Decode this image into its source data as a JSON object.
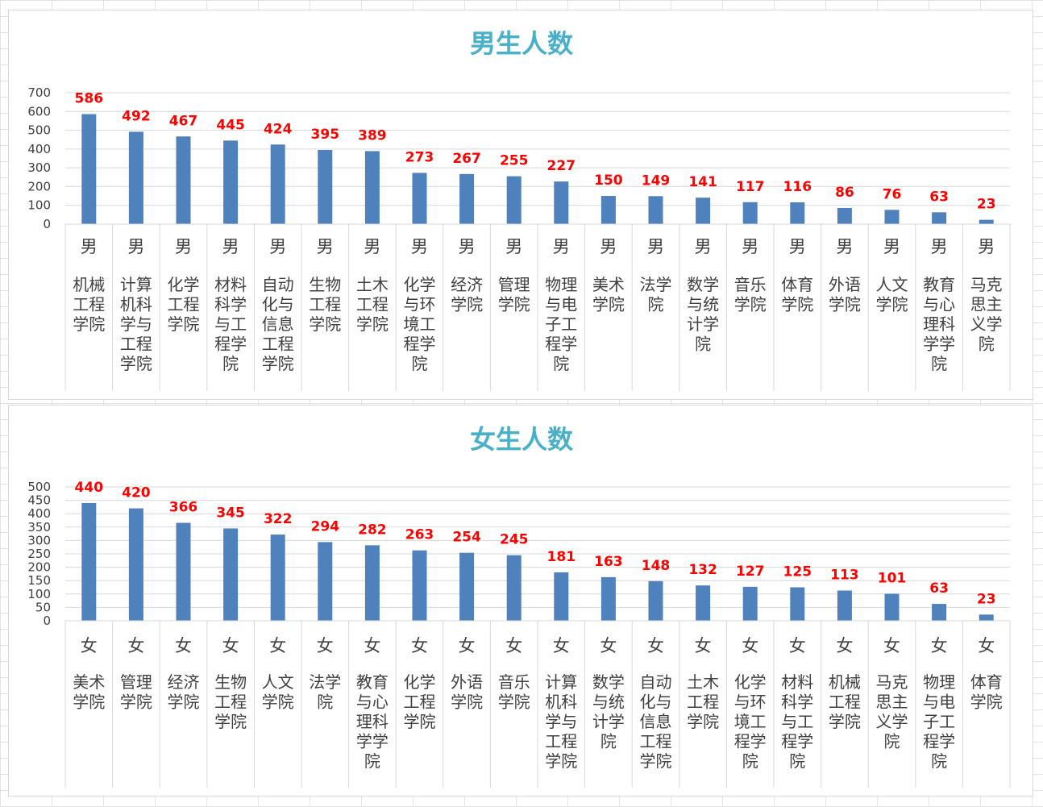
{
  "chart_data": [
    {
      "type": "bar",
      "title": "男生人数",
      "ylim": [
        0,
        700
      ],
      "yticks": [
        0,
        100,
        200,
        300,
        400,
        500,
        600,
        700
      ],
      "bar_color": "#4f81bd",
      "label_color": "#ff0000",
      "title_color": "#48b0c8",
      "grid": true,
      "categories": [
        {
          "gender": "男",
          "college": "机械工程学院",
          "lines": [
            "机械",
            "工程",
            "学院"
          ]
        },
        {
          "gender": "男",
          "college": "计算机科学与工程学院",
          "lines": [
            "计算",
            "机科",
            "学与",
            "工程",
            "学院"
          ]
        },
        {
          "gender": "男",
          "college": "化学工程学院",
          "lines": [
            "化学",
            "工程",
            "学院"
          ]
        },
        {
          "gender": "男",
          "college": "材料科学与工程学院",
          "lines": [
            "材料",
            "科学",
            "与工",
            "程学",
            "院"
          ]
        },
        {
          "gender": "男",
          "college": "自动化与信息工程学院",
          "lines": [
            "自动",
            "化与",
            "信息",
            "工程",
            "学院"
          ]
        },
        {
          "gender": "男",
          "college": "生物工程学院",
          "lines": [
            "生物",
            "工程",
            "学院"
          ]
        },
        {
          "gender": "男",
          "college": "土木工程学院",
          "lines": [
            "土木",
            "工程",
            "学院"
          ]
        },
        {
          "gender": "男",
          "college": "化学与环境工程学院",
          "lines": [
            "化学",
            "与环",
            "境工",
            "程学",
            "院"
          ]
        },
        {
          "gender": "男",
          "college": "经济学院",
          "lines": [
            "经济",
            "学院"
          ]
        },
        {
          "gender": "男",
          "college": "管理学院",
          "lines": [
            "管理",
            "学院"
          ]
        },
        {
          "gender": "男",
          "college": "物理与电子工程学院",
          "lines": [
            "物理",
            "与电",
            "子工",
            "程学",
            "院"
          ]
        },
        {
          "gender": "男",
          "college": "美术学院",
          "lines": [
            "美术",
            "学院"
          ]
        },
        {
          "gender": "男",
          "college": "法学院",
          "lines": [
            "法学",
            "院"
          ]
        },
        {
          "gender": "男",
          "college": "数学与统计学院",
          "lines": [
            "数学",
            "与统",
            "计学",
            "院"
          ]
        },
        {
          "gender": "男",
          "college": "音乐学院",
          "lines": [
            "音乐",
            "学院"
          ]
        },
        {
          "gender": "男",
          "college": "体育学院",
          "lines": [
            "体育",
            "学院"
          ]
        },
        {
          "gender": "男",
          "college": "外语学院",
          "lines": [
            "外语",
            "学院"
          ]
        },
        {
          "gender": "男",
          "college": "人文学院",
          "lines": [
            "人文",
            "学院"
          ]
        },
        {
          "gender": "男",
          "college": "教育与心理科学学院",
          "lines": [
            "教育",
            "与心",
            "理科",
            "学学",
            "院"
          ]
        },
        {
          "gender": "男",
          "college": "马克思主义学院",
          "lines": [
            "马克",
            "思主",
            "义学",
            "院"
          ]
        }
      ],
      "values": [
        586,
        492,
        467,
        445,
        424,
        395,
        389,
        273,
        267,
        255,
        227,
        150,
        149,
        141,
        117,
        116,
        86,
        76,
        63,
        23
      ]
    },
    {
      "type": "bar",
      "title": "女生人数",
      "ylim": [
        0,
        500
      ],
      "yticks": [
        0,
        50,
        100,
        150,
        200,
        250,
        300,
        350,
        400,
        450,
        500
      ],
      "bar_color": "#4f81bd",
      "label_color": "#ff0000",
      "title_color": "#48b0c8",
      "grid": true,
      "categories": [
        {
          "gender": "女",
          "college": "美术学院",
          "lines": [
            "美术",
            "学院"
          ]
        },
        {
          "gender": "女",
          "college": "管理学院",
          "lines": [
            "管理",
            "学院"
          ]
        },
        {
          "gender": "女",
          "college": "经济学院",
          "lines": [
            "经济",
            "学院"
          ]
        },
        {
          "gender": "女",
          "college": "生物工程学院",
          "lines": [
            "生物",
            "工程",
            "学院"
          ]
        },
        {
          "gender": "女",
          "college": "人文学院",
          "lines": [
            "人文",
            "学院"
          ]
        },
        {
          "gender": "女",
          "college": "法学院",
          "lines": [
            "法学",
            "院"
          ]
        },
        {
          "gender": "女",
          "college": "教育与心理科学学院",
          "lines": [
            "教育",
            "与心",
            "理科",
            "学学",
            "院"
          ]
        },
        {
          "gender": "女",
          "college": "化学工程学院",
          "lines": [
            "化学",
            "工程",
            "学院"
          ]
        },
        {
          "gender": "女",
          "college": "外语学院",
          "lines": [
            "外语",
            "学院"
          ]
        },
        {
          "gender": "女",
          "college": "音乐学院",
          "lines": [
            "音乐",
            "学院"
          ]
        },
        {
          "gender": "女",
          "college": "计算机科学与工程学院",
          "lines": [
            "计算",
            "机科",
            "学与",
            "工程",
            "学院"
          ]
        },
        {
          "gender": "女",
          "college": "数学与统计学院",
          "lines": [
            "数学",
            "与统",
            "计学",
            "院"
          ]
        },
        {
          "gender": "女",
          "college": "自动化与信息工程学院",
          "lines": [
            "自动",
            "化与",
            "信息",
            "工程",
            "学院"
          ]
        },
        {
          "gender": "女",
          "college": "土木工程学院",
          "lines": [
            "土木",
            "工程",
            "学院"
          ]
        },
        {
          "gender": "女",
          "college": "化学与环境工程学院",
          "lines": [
            "化学",
            "与环",
            "境工",
            "程学",
            "院"
          ]
        },
        {
          "gender": "女",
          "college": "材料科学与工程学院",
          "lines": [
            "材料",
            "科学",
            "与工",
            "程学",
            "院"
          ]
        },
        {
          "gender": "女",
          "college": "机械工程学院",
          "lines": [
            "机械",
            "工程",
            "学院"
          ]
        },
        {
          "gender": "女",
          "college": "马克思主义学院",
          "lines": [
            "马克",
            "思主",
            "义学",
            "院"
          ]
        },
        {
          "gender": "女",
          "college": "物理与电子工程学院",
          "lines": [
            "物理",
            "与电",
            "子工",
            "程学",
            "院"
          ]
        },
        {
          "gender": "女",
          "college": "体育学院",
          "lines": [
            "体育",
            "学院"
          ]
        }
      ],
      "values": [
        440,
        420,
        366,
        345,
        322,
        294,
        282,
        263,
        254,
        245,
        181,
        163,
        148,
        132,
        127,
        125,
        113,
        101,
        63,
        23
      ]
    }
  ]
}
